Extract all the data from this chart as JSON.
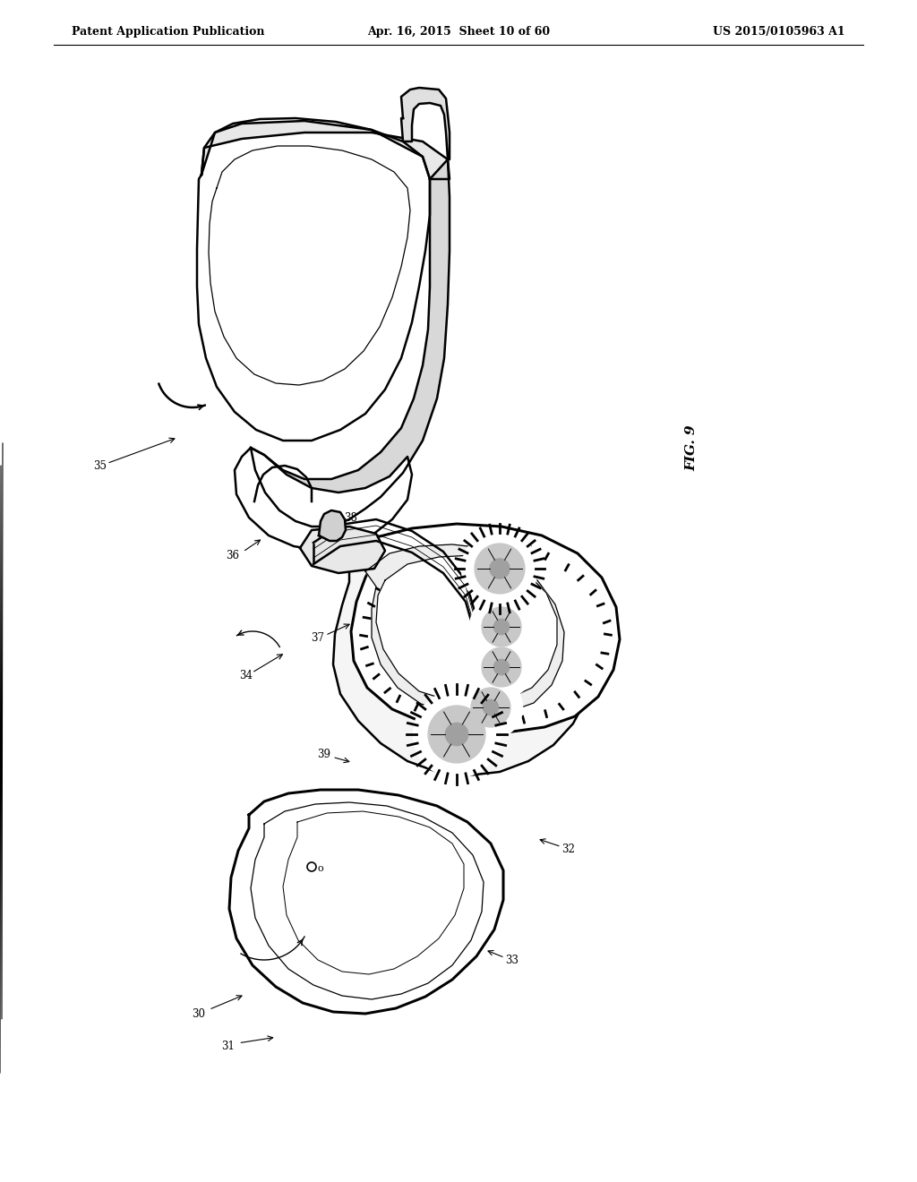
{
  "background_color": "#ffffff",
  "header_left": "Patent Application Publication",
  "header_center": "Apr. 16, 2015  Sheet 10 of 60",
  "header_right": "US 2015/0105963 A1",
  "fig_label": "FIG. 9",
  "line_color": "#000000",
  "lw_main": 1.8,
  "lw_thin": 0.9,
  "lw_thick": 2.2
}
